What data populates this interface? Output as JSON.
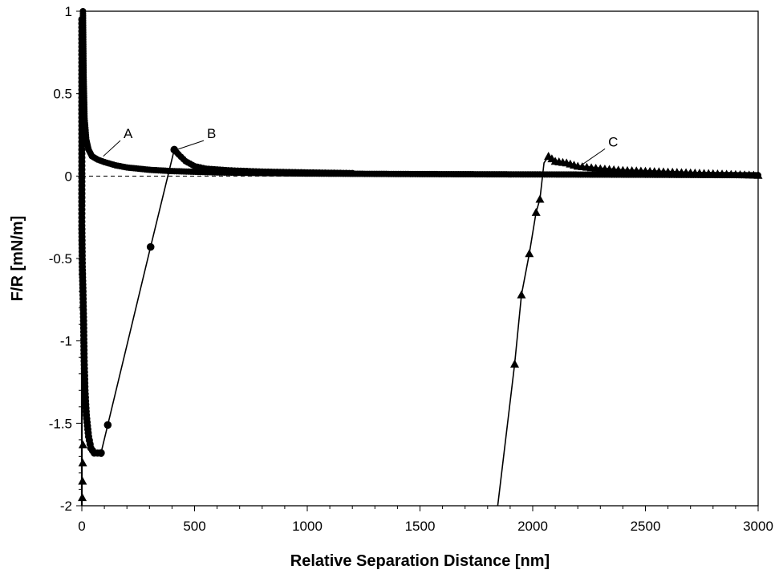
{
  "chart_data": {
    "type": "line",
    "title": "",
    "xlabel": "Relative Separation Distance [nm]",
    "ylabel": "F/R [mN/m]",
    "xlim": [
      0,
      3000
    ],
    "ylim": [
      -2,
      1
    ],
    "x_ticks": [
      "0",
      "500",
      "1000",
      "1500",
      "2000",
      "2500",
      "3000"
    ],
    "y_ticks": [
      "1",
      "0.5",
      "0",
      "-0.5",
      "-1",
      "-1.5",
      "-2"
    ],
    "grid": false,
    "zero_line": "dashed",
    "series": [
      {
        "label": "A",
        "marker": "circle",
        "dense": true,
        "points": [
          [
            5,
            1.0
          ],
          [
            8,
            0.6
          ],
          [
            12,
            0.35
          ],
          [
            20,
            0.22
          ],
          [
            30,
            0.16
          ],
          [
            45,
            0.12
          ],
          [
            70,
            0.1
          ],
          [
            100,
            0.085
          ],
          [
            150,
            0.065
          ],
          [
            200,
            0.052
          ],
          [
            300,
            0.038
          ],
          [
            400,
            0.03
          ],
          [
            600,
            0.022
          ],
          [
            800,
            0.018
          ],
          [
            1000,
            0.015
          ],
          [
            1500,
            0.012
          ],
          [
            2000,
            0.01
          ],
          [
            2500,
            0.008
          ],
          [
            3000,
            0.005
          ]
        ]
      },
      {
        "label": "B",
        "marker": "circle",
        "dense_retraction": true,
        "retraction_points": [
          [
            0,
            0.95
          ],
          [
            0,
            0.5
          ],
          [
            0,
            -0.3
          ],
          [
            2,
            -0.55
          ],
          [
            5,
            -0.7
          ],
          [
            8,
            -0.9
          ],
          [
            10,
            -1.1
          ],
          [
            14,
            -1.3
          ],
          [
            20,
            -1.45
          ],
          [
            30,
            -1.58
          ],
          [
            40,
            -1.65
          ],
          [
            55,
            -1.68
          ],
          [
            70,
            -1.68
          ],
          [
            85,
            -1.68
          ]
        ],
        "line_points": [
          [
            85,
            -1.68
          ],
          [
            115,
            -1.51
          ],
          [
            305,
            -0.43
          ],
          [
            410,
            0.16
          ]
        ],
        "decay_points": [
          [
            410,
            0.16
          ],
          [
            430,
            0.13
          ],
          [
            460,
            0.09
          ],
          [
            500,
            0.06
          ],
          [
            550,
            0.045
          ],
          [
            650,
            0.035
          ],
          [
            800,
            0.027
          ],
          [
            1000,
            0.022
          ],
          [
            1200,
            0.018
          ]
        ]
      },
      {
        "label": "C",
        "marker": "triangle",
        "near_zero_points": [
          [
            2,
            -1.95
          ],
          [
            3,
            -1.85
          ],
          [
            4,
            -1.74
          ],
          [
            5,
            -1.63
          ]
        ],
        "line_points": [
          [
            1845,
            -2.0
          ],
          [
            1920,
            -1.14
          ],
          [
            1950,
            -0.72
          ],
          [
            1985,
            -0.47
          ],
          [
            2015,
            -0.22
          ],
          [
            2032,
            -0.14
          ],
          [
            2050,
            0.08
          ],
          [
            2070,
            0.12
          ]
        ],
        "marker_points": [
          [
            1920,
            -1.14
          ],
          [
            1950,
            -0.72
          ],
          [
            1985,
            -0.47
          ],
          [
            2015,
            -0.22
          ],
          [
            2032,
            -0.14
          ],
          [
            2070,
            0.12
          ]
        ],
        "decay_points": [
          [
            2070,
            0.12
          ],
          [
            2100,
            0.09
          ],
          [
            2150,
            0.08
          ],
          [
            2200,
            0.06
          ],
          [
            2300,
            0.045
          ],
          [
            2400,
            0.035
          ],
          [
            2500,
            0.03
          ],
          [
            2600,
            0.025
          ],
          [
            2700,
            0.02
          ],
          [
            2800,
            0.015
          ],
          [
            2900,
            0.01
          ],
          [
            3000,
            0.005
          ]
        ]
      }
    ],
    "annotations": [
      {
        "text": "A",
        "at": [
          95,
          0.12
        ],
        "label_pos": [
          185,
          0.23
        ]
      },
      {
        "text": "B",
        "at": [
          420,
          0.16
        ],
        "label_pos": [
          555,
          0.23
        ]
      },
      {
        "text": "C",
        "at": [
          2220,
          0.07
        ],
        "label_pos": [
          2335,
          0.18
        ]
      }
    ]
  }
}
